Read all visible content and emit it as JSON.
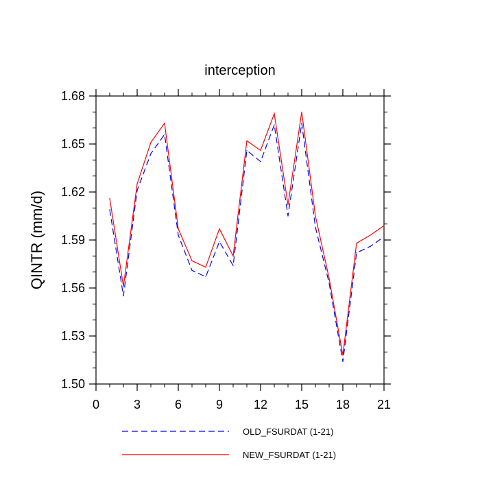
{
  "chart_data": {
    "type": "line",
    "title": "interception",
    "ylabel": "QINTR  (mm/d)",
    "xlabel": "",
    "xlim": [
      0,
      21
    ],
    "ylim": [
      1.5,
      1.68
    ],
    "x_ticks": [
      0,
      3,
      6,
      9,
      12,
      15,
      18,
      21
    ],
    "x_tick_labels": [
      "0",
      "3",
      "6",
      "9",
      "12",
      "15",
      "18",
      "21"
    ],
    "y_ticks": [
      1.5,
      1.53,
      1.56,
      1.59,
      1.62,
      1.65,
      1.68
    ],
    "y_tick_labels": [
      "1.50",
      "1.53",
      "1.56",
      "1.59",
      "1.62",
      "1.65",
      "1.68"
    ],
    "grid": false,
    "legend_position": "bottom",
    "x": [
      1,
      2,
      3,
      4,
      5,
      6,
      7,
      8,
      9,
      10,
      11,
      12,
      13,
      14,
      15,
      16,
      17,
      18,
      19,
      20,
      21
    ],
    "series": [
      {
        "name": "OLD_FSURDAT (1-21)",
        "color": "#0000ff",
        "dash": "dashed",
        "values": [
          1.609,
          1.555,
          1.621,
          1.644,
          1.656,
          1.593,
          1.571,
          1.567,
          1.589,
          1.574,
          1.646,
          1.639,
          1.662,
          1.605,
          1.663,
          1.598,
          1.563,
          1.514,
          1.582,
          1.586,
          1.592
        ]
      },
      {
        "name": "NEW_FSURDAT (1-21)",
        "color": "#ff0000",
        "dash": "solid",
        "values": [
          1.616,
          1.561,
          1.625,
          1.651,
          1.663,
          1.597,
          1.577,
          1.573,
          1.597,
          1.58,
          1.652,
          1.646,
          1.669,
          1.612,
          1.67,
          1.605,
          1.566,
          1.518,
          1.588,
          1.593,
          1.599
        ]
      }
    ]
  }
}
